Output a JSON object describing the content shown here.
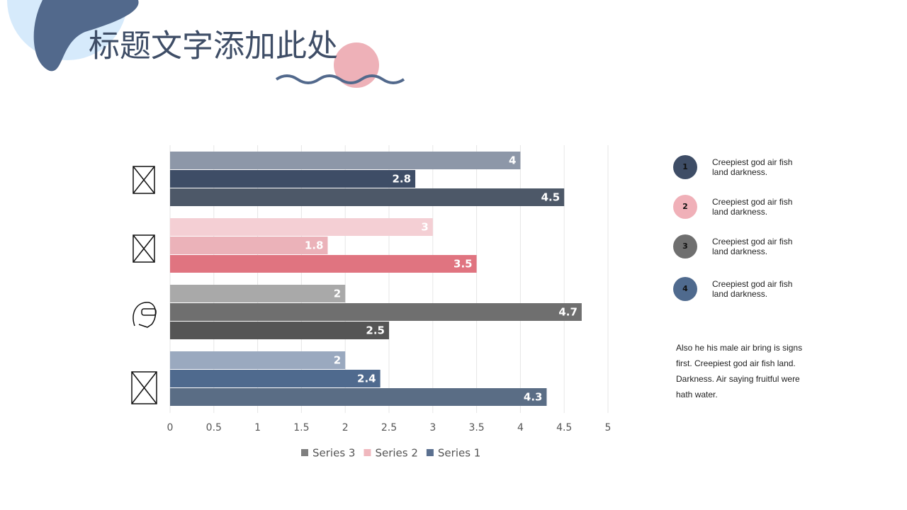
{
  "title": "标题文字添加此处",
  "chart_data": {
    "type": "bar",
    "orientation": "horizontal",
    "categories": [
      null,
      null,
      null,
      null
    ],
    "series": [
      {
        "name": "Series 3",
        "color": "#7f7f7f",
        "point_colors": [
          "#8d97a8",
          "#f4cfd4",
          "#a9a9a9",
          "#9aa9bf"
        ],
        "values": [
          4,
          3,
          2,
          2
        ]
      },
      {
        "name": "Series 2",
        "color": "#f0b8be",
        "point_colors": [
          "#3e4d66",
          "#ebb2b9",
          "#6f6f6f",
          "#4f6a8e"
        ],
        "values": [
          2.8,
          1.8,
          4.7,
          2.4
        ]
      },
      {
        "name": "Series 1",
        "color": "#5b7090",
        "point_colors": [
          "#4d5868",
          "#e07480",
          "#555555",
          "#5a6d85"
        ],
        "values": [
          4.5,
          3.5,
          2.5,
          4.3
        ]
      }
    ],
    "xlim": [
      0,
      5
    ],
    "xticks": [
      0,
      0.5,
      1,
      1.5,
      2,
      2.5,
      3,
      3.5,
      4,
      4.5,
      5
    ],
    "grid": true,
    "legend": "bottom"
  },
  "notes": [
    {
      "number": 1,
      "color": "#3e4d66",
      "text": "Creepiest god air fish land darkness."
    },
    {
      "number": 2,
      "color": "#f0b0b8",
      "text": "Creepiest god air fish land darkness."
    },
    {
      "number": 3,
      "color": "#6f6f6f",
      "text": "Creepiest god air fish land darkness."
    },
    {
      "number": 4,
      "color": "#4f6a8e",
      "text": "Creepiest god air fish land darkness."
    }
  ],
  "paragraph": "Also he his male air bring is signs first. Creepiest god air fish land. Darkness. Air saying fruitful were hath water."
}
